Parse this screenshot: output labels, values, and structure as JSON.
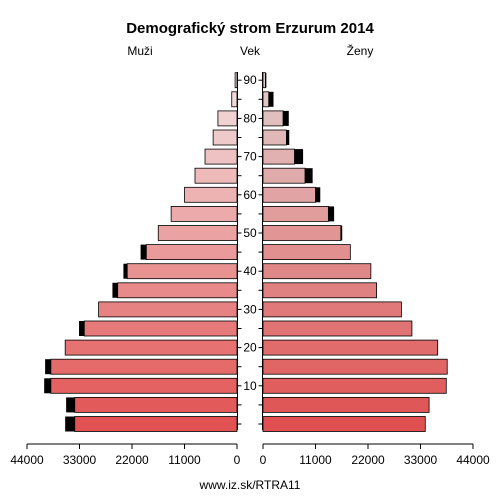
{
  "chart_data": {
    "type": "bar",
    "orientation": "horizontal-population-pyramid",
    "title": "Demografický strom Erzurum 2014",
    "left_label": "Muži",
    "center_label": "Vek",
    "right_label": "Ženy",
    "source": "www.iz.sk/RTRA11",
    "age_ticks": [
      "90",
      "80",
      "70",
      "60",
      "50",
      "40",
      "30",
      "20",
      "10"
    ],
    "x_ticks_left": [
      "44000",
      "33000",
      "22000",
      "11000",
      "0"
    ],
    "x_ticks_right": [
      "0",
      "11000",
      "22000",
      "33000",
      "44000"
    ],
    "xlim": [
      0,
      44000
    ],
    "categories": [
      "0-4",
      "5-9",
      "10-14",
      "15-19",
      "20-24",
      "25-29",
      "30-34",
      "35-39",
      "40-44",
      "45-49",
      "50-54",
      "55-59",
      "60-64",
      "65-69",
      "70-74",
      "75-79",
      "80-84",
      "85-89",
      "90+"
    ],
    "series": [
      {
        "name": "Muži",
        "values": [
          34000,
          34000,
          39000,
          39000,
          36000,
          32000,
          29000,
          25000,
          23000,
          19000,
          16500,
          13800,
          11000,
          8800,
          6700,
          5000,
          4000,
          1100,
          400
        ],
        "extra": [
          2000,
          1800,
          1400,
          1200,
          0,
          1100,
          0,
          1100,
          800,
          1200,
          0,
          0,
          0,
          0,
          0,
          0,
          0,
          0,
          0
        ]
      },
      {
        "name": "Ženy",
        "values": [
          34000,
          34800,
          38400,
          38600,
          36600,
          31200,
          29000,
          23800,
          22600,
          18300,
          16300,
          13700,
          11000,
          8800,
          6600,
          4900,
          4200,
          1200,
          500
        ],
        "extra": [
          0,
          0,
          0,
          0,
          0,
          0,
          0,
          0,
          0,
          0,
          300,
          1200,
          1000,
          1600,
          1800,
          600,
          1200,
          1000,
          200
        ]
      }
    ]
  }
}
